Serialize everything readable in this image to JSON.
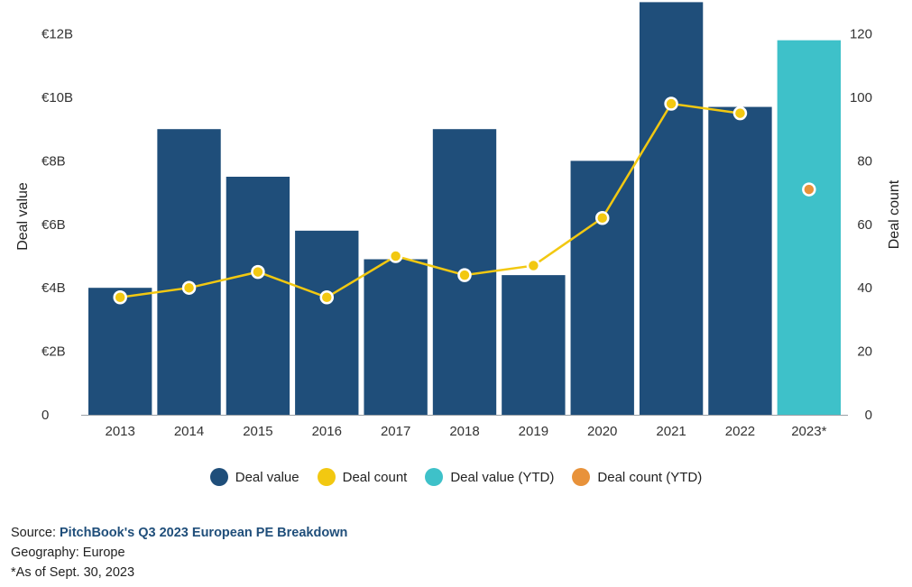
{
  "colors": {
    "deal_value": "#1f4e7a",
    "deal_count": "#f2c811",
    "deal_value_ytd": "#3ec1c9",
    "deal_count_ytd": "#e8923a"
  },
  "chart_data": {
    "type": "bar",
    "categories": [
      "2013",
      "2014",
      "2015",
      "2016",
      "2017",
      "2018",
      "2019",
      "2020",
      "2021",
      "2022",
      "2023*"
    ],
    "series": [
      {
        "name": "Deal value",
        "axis": "left",
        "kind": "bar",
        "values": [
          4.0,
          9.0,
          7.5,
          5.8,
          4.9,
          9.0,
          4.4,
          8.0,
          13.0,
          9.7,
          null
        ]
      },
      {
        "name": "Deal value (YTD)",
        "axis": "left",
        "kind": "bar",
        "values": [
          null,
          null,
          null,
          null,
          null,
          null,
          null,
          null,
          null,
          null,
          11.8
        ]
      },
      {
        "name": "Deal count",
        "axis": "right",
        "kind": "line",
        "values": [
          37,
          40,
          45,
          37,
          50,
          44,
          47,
          62,
          98,
          95,
          null
        ]
      },
      {
        "name": "Deal count (YTD)",
        "axis": "right",
        "kind": "point",
        "values": [
          null,
          null,
          null,
          null,
          null,
          null,
          null,
          null,
          null,
          null,
          71
        ]
      }
    ],
    "ylabel": "Deal value",
    "ylabel_right": "Deal count",
    "ylim": [
      0,
      12.8
    ],
    "ylim_right": [
      0,
      128
    ],
    "yticks": [
      {
        "value": 0,
        "label": "0"
      },
      {
        "value": 2,
        "label": "€2B"
      },
      {
        "value": 4,
        "label": "€4B"
      },
      {
        "value": 6,
        "label": "€6B"
      },
      {
        "value": 8,
        "label": "€8B"
      },
      {
        "value": 10,
        "label": "€10B"
      },
      {
        "value": 12,
        "label": "€12B"
      }
    ],
    "yticks_right": [
      {
        "value": 0,
        "label": "0"
      },
      {
        "value": 20,
        "label": "20"
      },
      {
        "value": 40,
        "label": "40"
      },
      {
        "value": 60,
        "label": "60"
      },
      {
        "value": 80,
        "label": "80"
      },
      {
        "value": 100,
        "label": "100"
      },
      {
        "value": 120,
        "label": "120"
      }
    ],
    "grid": false,
    "legend_position": "bottom"
  },
  "legend": {
    "items": [
      {
        "label": "Deal value",
        "color_key": "deal_value"
      },
      {
        "label": "Deal count",
        "color_key": "deal_count"
      },
      {
        "label": "Deal value (YTD)",
        "color_key": "deal_value_ytd"
      },
      {
        "label": "Deal count (YTD)",
        "color_key": "deal_count_ytd"
      }
    ]
  },
  "footer": {
    "source_prefix": "Source: ",
    "source_link": "PitchBook's Q3 2023 European PE Breakdown",
    "geography": "Geography: Europe",
    "note": "*As of Sept. 30, 2023"
  }
}
